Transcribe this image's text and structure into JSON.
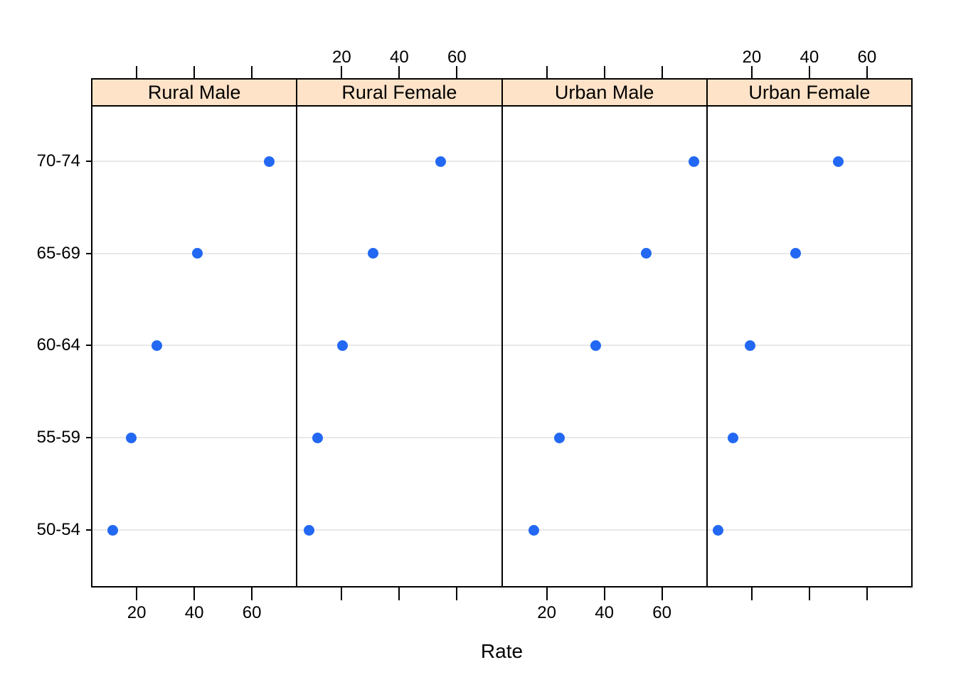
{
  "chart_data": {
    "type": "scatter",
    "layout_hint": "lattice trellis dotplot: 4 side-by-side panels sharing y categories, horizontal gray guide lines, strip headers on top",
    "title": "",
    "xlabel": "Rate",
    "ylabel": "",
    "xlim": [
      4.4,
      75.6
    ],
    "x_ticks": [
      20,
      40,
      60
    ],
    "categories_y_bottom_to_top": [
      "50-54",
      "55-59",
      "60-64",
      "65-69",
      "70-74"
    ],
    "panels": [
      {
        "label": "Rural Male",
        "slug": "rural-male",
        "values": [
          11.7,
          18.1,
          26.9,
          41.0,
          66.0
        ],
        "top_axis_labels": false,
        "bottom_axis_labels": true
      },
      {
        "label": "Rural Female",
        "slug": "rural-female",
        "values": [
          8.7,
          11.7,
          20.3,
          30.9,
          54.3
        ],
        "top_axis_labels": true,
        "bottom_axis_labels": false
      },
      {
        "label": "Urban Male",
        "slug": "urban-male",
        "values": [
          15.4,
          24.3,
          37.0,
          54.6,
          71.1
        ],
        "top_axis_labels": false,
        "bottom_axis_labels": true
      },
      {
        "label": "Urban Female",
        "slug": "urban-female",
        "values": [
          8.4,
          13.6,
          19.3,
          35.1,
          50.0
        ],
        "top_axis_labels": true,
        "bottom_axis_labels": false
      }
    ],
    "legend": "none",
    "grid": "light horizontal row lines only",
    "colors": {
      "dot": "#2268f2",
      "strip_background": "#ffe3c8",
      "row_line": "#e8e8e8",
      "border": "#000000",
      "text": "#000000",
      "background": "#ffffff"
    }
  }
}
